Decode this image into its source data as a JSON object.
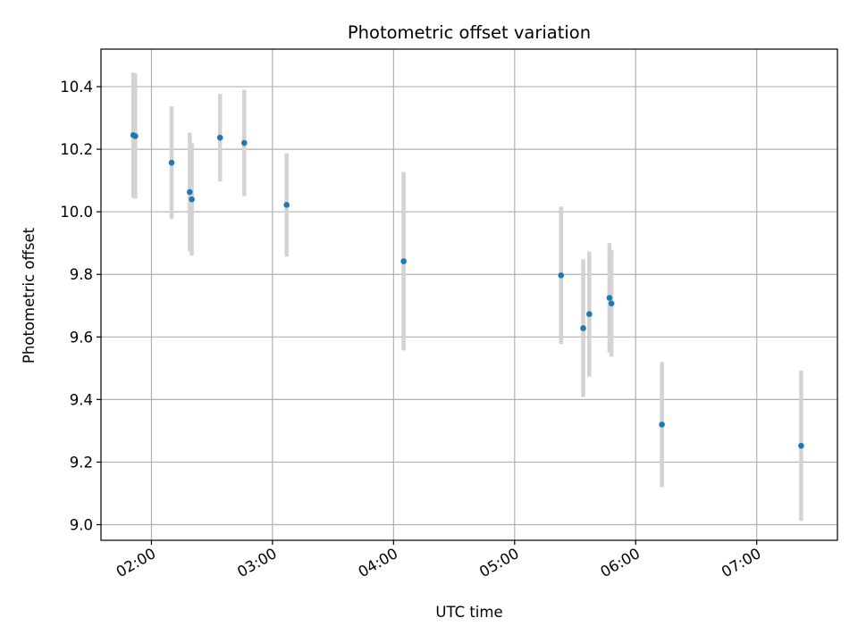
{
  "chart_data": {
    "type": "scatter",
    "title": "Photometric offset variation",
    "xlabel": "UTC time",
    "ylabel": "Photometric offset",
    "x_ticks": [
      "02:00",
      "03:00",
      "04:00",
      "05:00",
      "06:00",
      "07:00"
    ],
    "y_ticks": [
      "9.0",
      "9.2",
      "9.4",
      "9.6",
      "9.8",
      "10.0",
      "10.2",
      "10.4"
    ],
    "ylim": [
      8.95,
      10.52
    ],
    "xlim": [
      "01:35",
      "07:40"
    ],
    "grid": true,
    "points": [
      {
        "x": "01:51",
        "y": 10.245,
        "err": 0.2
      },
      {
        "x": "01:52",
        "y": 10.242,
        "err": 0.2
      },
      {
        "x": "02:10",
        "y": 10.157,
        "err": 0.18
      },
      {
        "x": "02:19",
        "y": 10.063,
        "err": 0.19
      },
      {
        "x": "02:20",
        "y": 10.04,
        "err": 0.18
      },
      {
        "x": "02:34",
        "y": 10.237,
        "err": 0.14
      },
      {
        "x": "02:46",
        "y": 10.22,
        "err": 0.17
      },
      {
        "x": "03:07",
        "y": 10.022,
        "err": 0.165
      },
      {
        "x": "04:05",
        "y": 9.842,
        "err": 0.285
      },
      {
        "x": "05:23",
        "y": 9.797,
        "err": 0.22
      },
      {
        "x": "05:34",
        "y": 9.628,
        "err": 0.22
      },
      {
        "x": "05:37",
        "y": 9.673,
        "err": 0.2
      },
      {
        "x": "05:47",
        "y": 9.725,
        "err": 0.175
      },
      {
        "x": "05:48",
        "y": 9.707,
        "err": 0.17
      },
      {
        "x": "06:13",
        "y": 9.32,
        "err": 0.2
      },
      {
        "x": "07:22",
        "y": 9.252,
        "err": 0.24
      }
    ],
    "colors": {
      "marker": "#1f77b4",
      "errorbar": "#d3d3d3",
      "grid": "#b0b0b0"
    }
  }
}
